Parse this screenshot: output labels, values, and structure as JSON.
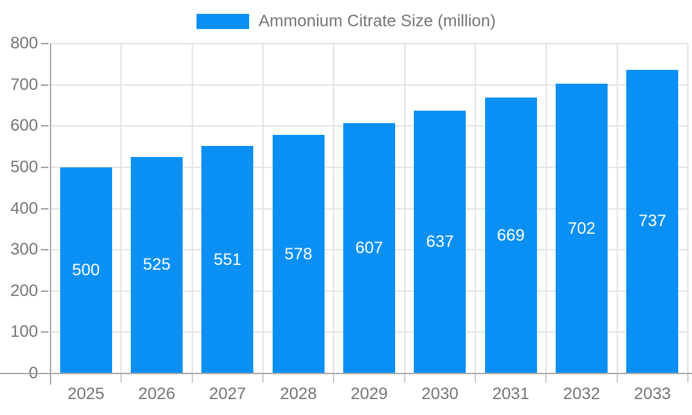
{
  "legend": {
    "label": "Ammonium Citrate Size (million)"
  },
  "chart_data": {
    "type": "bar",
    "title": "Ammonium Citrate Size (million)",
    "series": [
      {
        "name": "Ammonium Citrate Size (million)",
        "values": [
          500,
          525,
          551,
          578,
          607,
          637,
          669,
          702,
          737
        ]
      }
    ],
    "categories": [
      "2025",
      "2026",
      "2027",
      "2028",
      "2029",
      "2030",
      "2031",
      "2032",
      "2033"
    ],
    "data_labels": [
      "500",
      "525",
      "551",
      "578",
      "607",
      "637",
      "669",
      "702",
      "737"
    ],
    "xlabel": "",
    "ylabel": "",
    "ylim": [
      0,
      800
    ],
    "ytick_step": 100,
    "yticks": [
      "0",
      "100",
      "200",
      "300",
      "400",
      "500",
      "600",
      "700",
      "800"
    ],
    "grid": true,
    "legend_position": "top-center",
    "colors": {
      "bar": "#0a90f5",
      "bar_label": "#ffffff",
      "axis_label": "#757575",
      "gridline": "#e4e4e4",
      "axis_line": "#a9a9a9",
      "x_tick": "#cccccc",
      "y_tick": "#a0a0a0",
      "background": "#ffffff"
    }
  }
}
